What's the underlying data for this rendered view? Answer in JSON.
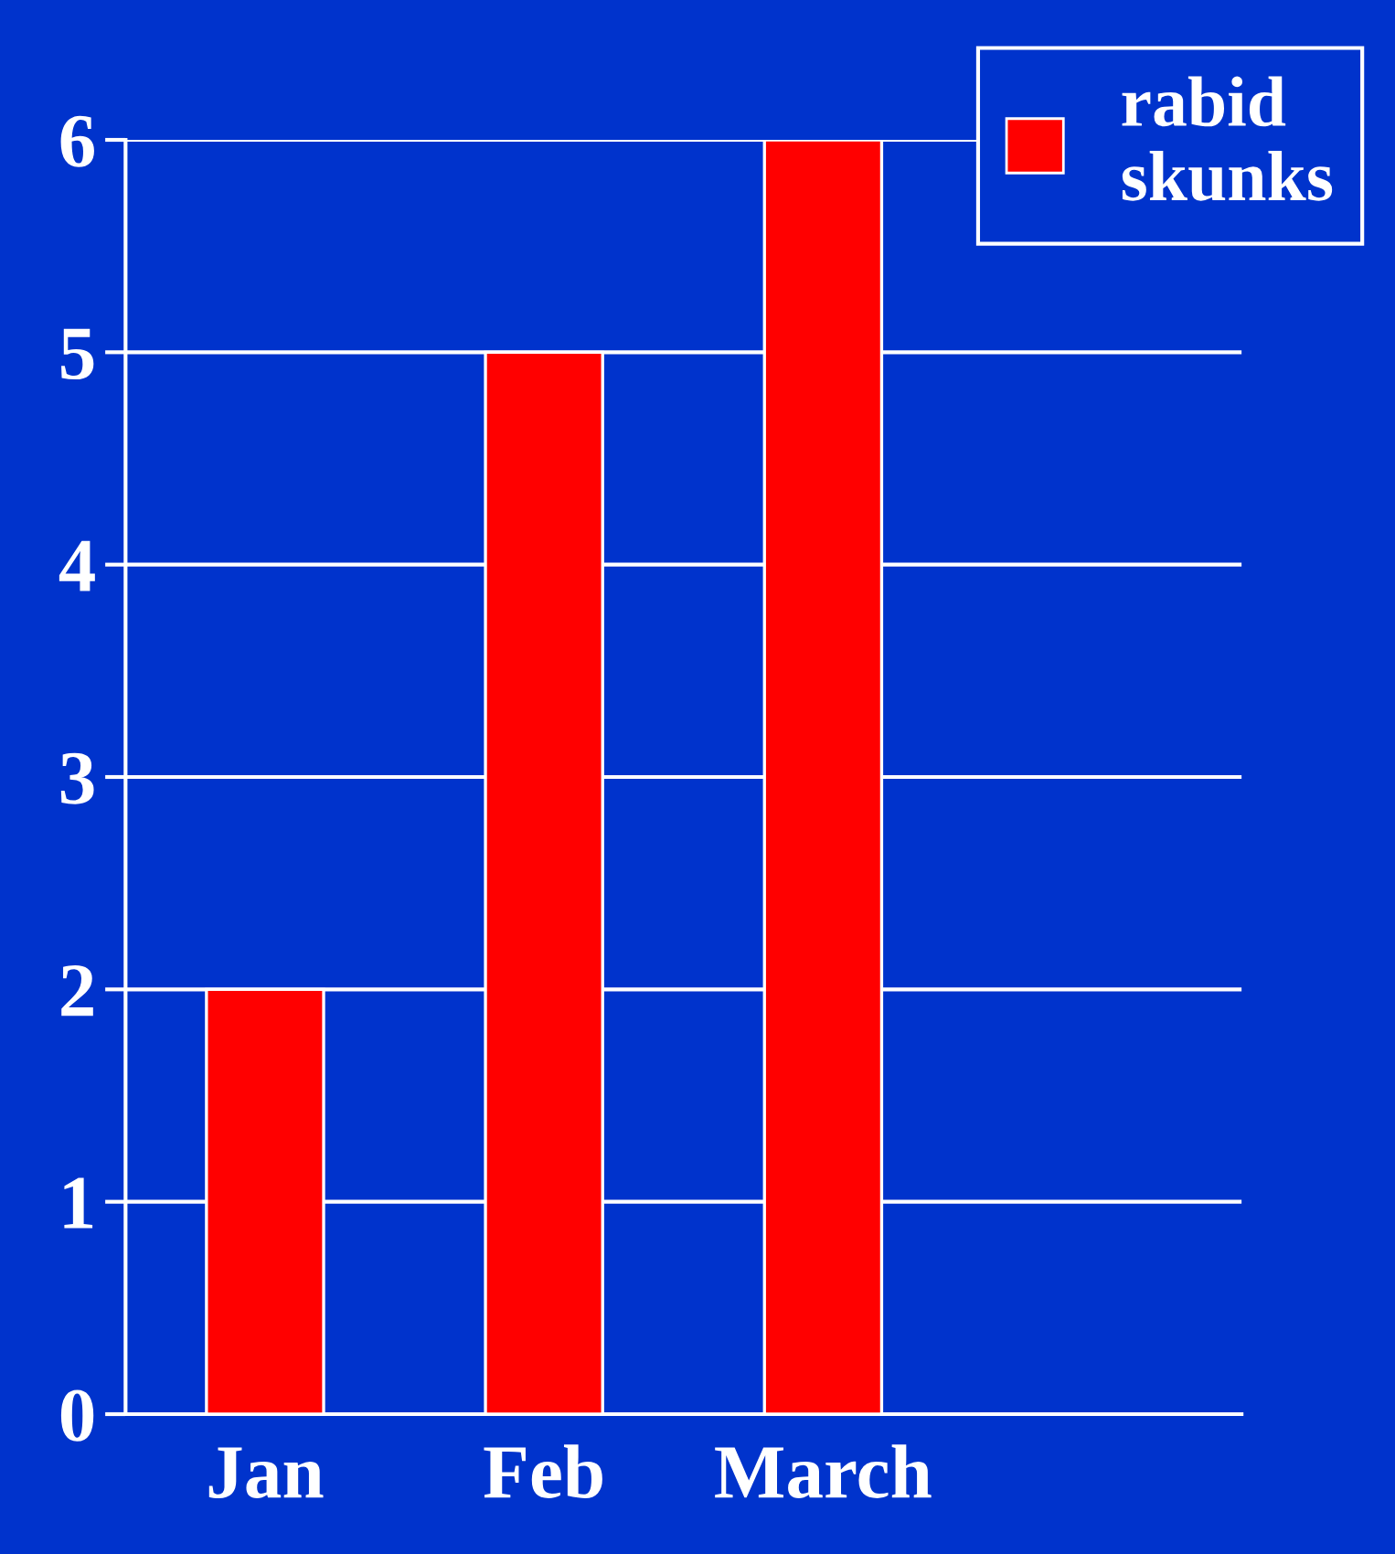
{
  "chart_data": {
    "type": "bar",
    "categories": [
      "Jan",
      "Feb",
      "March",
      null
    ],
    "series": [
      {
        "name": "rabid skunks",
        "color": "#ff0000",
        "values": [
          2,
          5,
          6,
          null
        ]
      }
    ],
    "ylim": [
      0,
      6
    ],
    "yticks": [
      0,
      1,
      2,
      3,
      4,
      5,
      6
    ],
    "grid": "y",
    "legend": "top right"
  }
}
